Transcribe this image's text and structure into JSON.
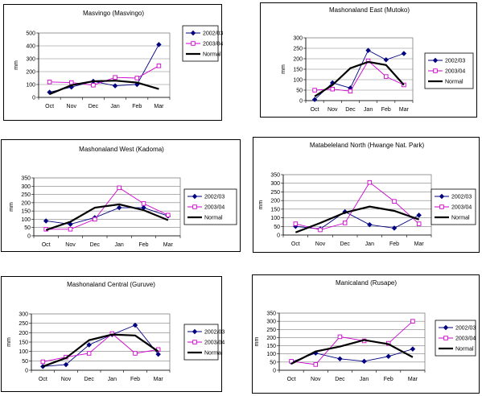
{
  "chart_data": [
    {
      "type": "line",
      "title": "Masvingo (Masvingo)",
      "ylabel": "mm",
      "categories": [
        "Oct",
        "Nov",
        "Dec",
        "Jan",
        "Feb",
        "Mar"
      ],
      "ylim": [
        0,
        500
      ],
      "yticks": [
        0,
        100,
        200,
        300,
        400,
        500
      ],
      "legend": "right",
      "series": [
        {
          "name": "2002/03",
          "color": "#000080",
          "marker": "diamond",
          "values": [
            40,
            80,
            125,
            90,
            100,
            410
          ]
        },
        {
          "name": "2003/04",
          "color": "#cc00cc",
          "marker": "square",
          "values": [
            120,
            115,
            95,
            155,
            150,
            245
          ]
        },
        {
          "name": "Normal",
          "color": "#000000",
          "marker": "none",
          "values": [
            25,
            95,
            125,
            130,
            115,
            65
          ]
        }
      ]
    },
    {
      "type": "line",
      "title": "Mashonaland East (Mutoko)",
      "ylabel": "mm",
      "categories": [
        "Oct",
        "Nov",
        "Dec",
        "Jan",
        "Feb",
        "Mar"
      ],
      "ylim": [
        0,
        300
      ],
      "yticks": [
        0,
        50,
        100,
        150,
        200,
        250,
        300
      ],
      "legend": "right",
      "series": [
        {
          "name": "2002/03",
          "color": "#000080",
          "marker": "diamond",
          "values": [
            5,
            85,
            60,
            240,
            195,
            225
          ]
        },
        {
          "name": "2003/04",
          "color": "#cc00cc",
          "marker": "square",
          "values": [
            50,
            55,
            45,
            190,
            115,
            75
          ]
        },
        {
          "name": "Normal",
          "color": "#000000",
          "marker": "none",
          "values": [
            20,
            75,
            155,
            185,
            170,
            75
          ]
        }
      ]
    },
    {
      "type": "line",
      "title": "Mashonaland West (Kadoma)",
      "ylabel": "mm",
      "categories": [
        "Oct",
        "Nov",
        "Dec",
        "Jan",
        "Feb",
        "Mar"
      ],
      "ylim": [
        0,
        350
      ],
      "yticks": [
        0,
        50,
        100,
        150,
        200,
        250,
        300,
        350
      ],
      "legend": "right",
      "series": [
        {
          "name": "2002/03",
          "color": "#000080",
          "marker": "diamond",
          "values": [
            90,
            70,
            110,
            170,
            170,
            120
          ]
        },
        {
          "name": "2003/04",
          "color": "#cc00cc",
          "marker": "square",
          "values": [
            40,
            40,
            100,
            290,
            195,
            125
          ]
        },
        {
          "name": "Normal",
          "color": "#000000",
          "marker": "none",
          "values": [
            35,
            85,
            170,
            190,
            155,
            95
          ]
        }
      ]
    },
    {
      "type": "line",
      "title": "Matabeleland North (Hwange Nat. Park)",
      "ylabel": "mm",
      "categories": [
        "Oct",
        "Nov",
        "Dec",
        "Jan",
        "Feb",
        "Mar"
      ],
      "ylim": [
        0,
        350
      ],
      "yticks": [
        0,
        50,
        100,
        150,
        200,
        250,
        300,
        350
      ],
      "legend": "right",
      "series": [
        {
          "name": "2002/03",
          "color": "#000080",
          "marker": "diamond",
          "values": [
            50,
            35,
            135,
            60,
            40,
            115
          ]
        },
        {
          "name": "2003/04",
          "color": "#cc00cc",
          "marker": "square",
          "values": [
            65,
            30,
            70,
            305,
            195,
            65
          ]
        },
        {
          "name": "Normal",
          "color": "#000000",
          "marker": "none",
          "values": [
            15,
            70,
            130,
            165,
            140,
            90
          ]
        }
      ]
    },
    {
      "type": "line",
      "title": "Mashonaland Central (Guruve)",
      "ylabel": "mm",
      "categories": [
        "Oct",
        "Nov",
        "Dec",
        "Jan",
        "Feb",
        "Mar"
      ],
      "ylim": [
        0,
        300
      ],
      "yticks": [
        0,
        50,
        100,
        150,
        200,
        250,
        300
      ],
      "legend": "right",
      "series": [
        {
          "name": "2002/03",
          "color": "#000080",
          "marker": "diamond",
          "values": [
            20,
            30,
            135,
            190,
            240,
            85
          ]
        },
        {
          "name": "2003/04",
          "color": "#cc00cc",
          "marker": "square",
          "values": [
            45,
            70,
            90,
            195,
            90,
            110
          ]
        },
        {
          "name": "Normal",
          "color": "#000000",
          "marker": "none",
          "values": [
            20,
            65,
            160,
            190,
            185,
            100
          ]
        }
      ]
    },
    {
      "type": "line",
      "title": "Manicaland (Rusape)",
      "ylabel": "mm",
      "categories": [
        "Oct",
        "Nov",
        "Dec",
        "Jan",
        "Feb",
        "Mar"
      ],
      "ylim": [
        0,
        350
      ],
      "yticks": [
        0,
        50,
        100,
        150,
        200,
        250,
        300,
        350
      ],
      "legend": "right",
      "series": [
        {
          "name": "2002/03",
          "color": "#000080",
          "marker": "diamond",
          "values": [
            50,
            105,
            70,
            55,
            85,
            130
          ]
        },
        {
          "name": "2003/04",
          "color": "#cc00cc",
          "marker": "square",
          "values": [
            55,
            35,
            205,
            180,
            165,
            300
          ]
        },
        {
          "name": "Normal",
          "color": "#000000",
          "marker": "none",
          "values": [
            40,
            115,
            145,
            185,
            160,
            80
          ]
        }
      ]
    }
  ]
}
